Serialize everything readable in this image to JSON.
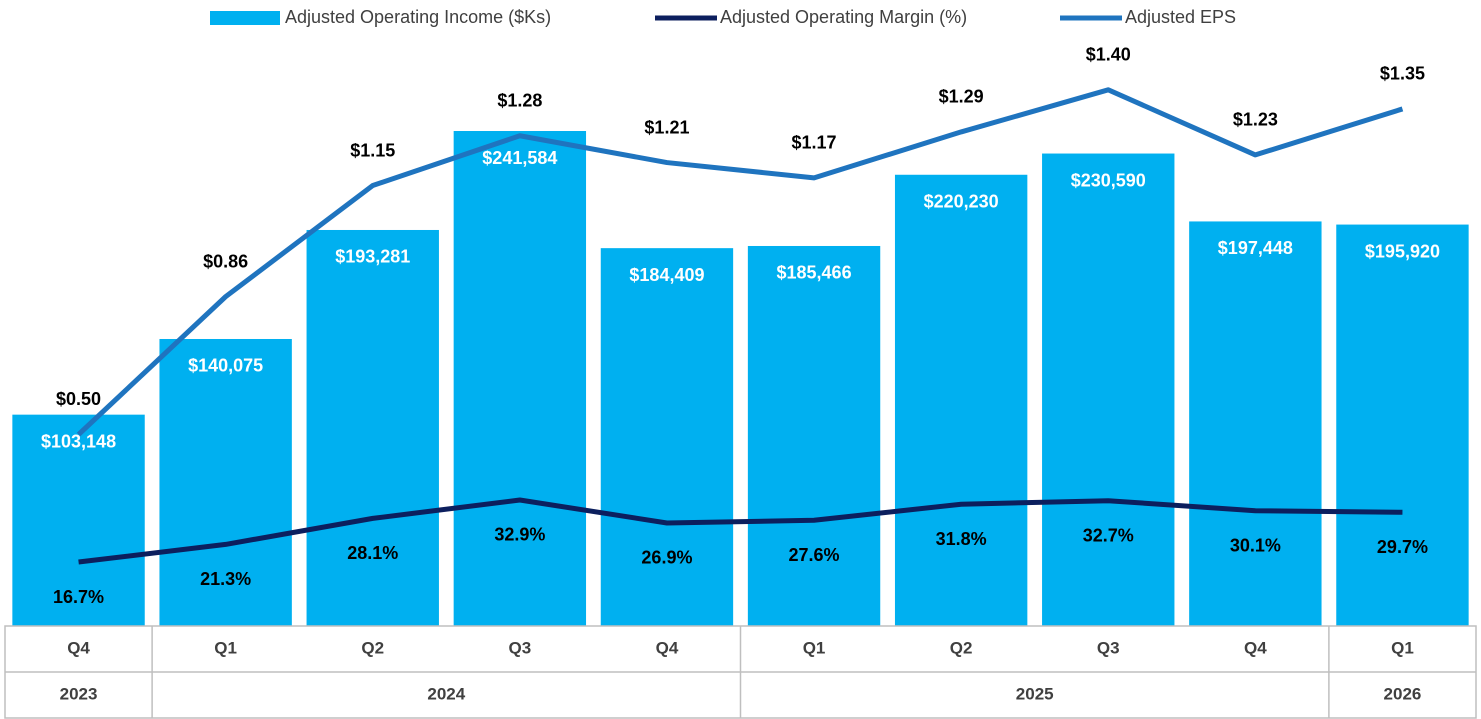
{
  "chart_data": {
    "type": "bar",
    "categories": [
      "Q4",
      "Q1",
      "Q2",
      "Q3",
      "Q4",
      "Q1",
      "Q2",
      "Q3",
      "Q4",
      "Q1"
    ],
    "groups": [
      {
        "label": "2023",
        "span": 1
      },
      {
        "label": "2024",
        "span": 4
      },
      {
        "label": "2025",
        "span": 4
      },
      {
        "label": "2026",
        "span": 1
      }
    ],
    "ylim": [
      0,
      286000
    ],
    "y2lim": [
      0,
      153
    ],
    "y3lim": [
      0,
      1.53
    ],
    "series": [
      {
        "name": "Adjusted Operating Income ($Ks)",
        "type": "bar",
        "color": "#00b0f0",
        "values": [
          103148,
          140075,
          193281,
          241584,
          184409,
          185466,
          220230,
          230590,
          197448,
          195920
        ],
        "value_labels": [
          "$103,148",
          "$140,075",
          "$193,281",
          "$241,584",
          "$184,409",
          "$185,466",
          "$220,230",
          "$230,590",
          "$197,448",
          "$195,920"
        ]
      },
      {
        "name": "Adjusted Operating Margin (%)",
        "type": "line",
        "axis": "y2",
        "color": "#0c1f5e",
        "values": [
          16.7,
          21.3,
          28.1,
          32.9,
          26.9,
          27.6,
          31.8,
          32.7,
          30.1,
          29.7
        ],
        "value_labels": [
          "16.7%",
          "21.3%",
          "28.1%",
          "32.9%",
          "26.9%",
          "27.6%",
          "31.8%",
          "32.7%",
          "30.1%",
          "29.7%"
        ]
      },
      {
        "name": "Adjusted EPS",
        "type": "line",
        "axis": "y3",
        "color": "#1f74bf",
        "values": [
          0.5,
          0.86,
          1.15,
          1.28,
          1.21,
          1.17,
          1.29,
          1.4,
          1.23,
          1.35
        ],
        "value_labels": [
          "$0.50",
          "$0.86",
          "$1.15",
          "$1.28",
          "$1.21",
          "$1.17",
          "$1.29",
          "$1.40",
          "$1.23",
          "$1.35"
        ]
      }
    ]
  }
}
